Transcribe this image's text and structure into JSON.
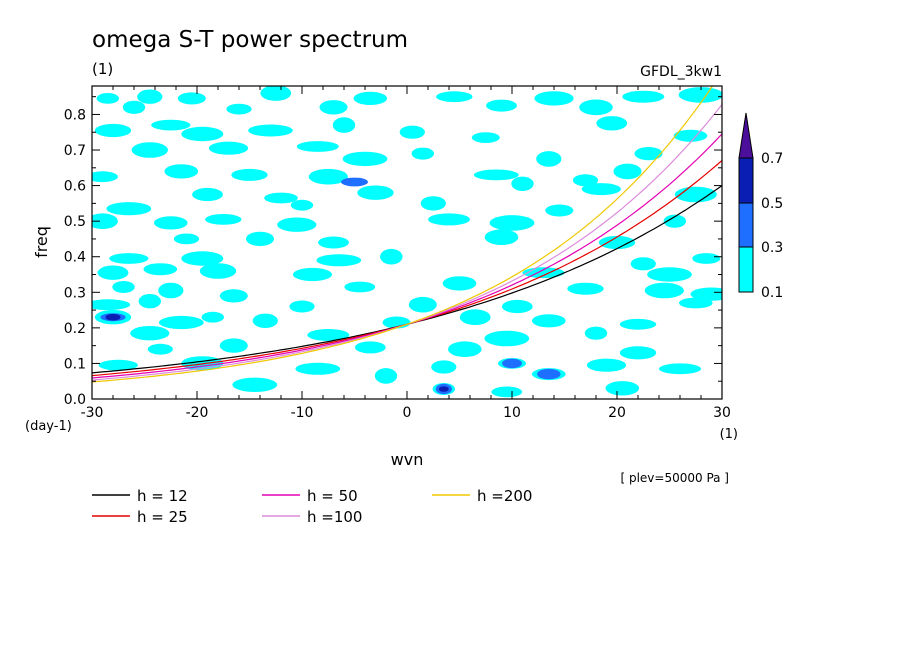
{
  "chart_data": {
    "type": "heatmap",
    "title": "omega S-T power spectrum",
    "units": "(1)",
    "model": "GFDL_3kw1",
    "xlabel": "wvn",
    "ylabel": "freq",
    "x_units": "(1)",
    "y_units": "(day-1)",
    "level_note": "[ plev=50000 Pa ]",
    "xlim": [
      -30,
      30
    ],
    "ylim": [
      0,
      0.88
    ],
    "x_ticks": [
      "-30",
      "-20",
      "-10",
      "0",
      "10",
      "20",
      "30"
    ],
    "y_ticks": [
      "0.0",
      "0.1",
      "0.2",
      "0.3",
      "0.4",
      "0.5",
      "0.6",
      "0.7",
      "0.8"
    ],
    "colorbar": {
      "levels": [
        "0.1",
        "0.3",
        "0.5",
        "0.7"
      ],
      "colors": [
        "#00ffff",
        "#1e6eff",
        "#0a1eb4",
        "#4b0f9b"
      ]
    },
    "dispersion_curves": [
      {
        "name": "h = 12",
        "h": 12,
        "color": "#000000"
      },
      {
        "name": "h = 25",
        "h": 25,
        "color": "#e60000"
      },
      {
        "name": "h = 50",
        "h": 50,
        "color": "#e600b4"
      },
      {
        "name": "h =100",
        "h": 100,
        "color": "#dc8cdc"
      },
      {
        "name": "h =200",
        "h": 200,
        "color": "#f0c800"
      }
    ],
    "power_patches": [
      {
        "x": -28.5,
        "y": 0.845,
        "level": 0
      },
      {
        "x": -24.5,
        "y": 0.85,
        "level": 0
      },
      {
        "x": -20.5,
        "y": 0.845,
        "level": 0
      },
      {
        "x": -12.5,
        "y": 0.86,
        "level": 0
      },
      {
        "x": -3.5,
        "y": 0.845,
        "level": 0
      },
      {
        "x": 4.5,
        "y": 0.85,
        "level": 0
      },
      {
        "x": 14,
        "y": 0.845,
        "level": 0
      },
      {
        "x": 22.5,
        "y": 0.85,
        "level": 0
      },
      {
        "x": 28,
        "y": 0.855,
        "level": 0
      },
      {
        "x": -26,
        "y": 0.82,
        "level": 0
      },
      {
        "x": -16,
        "y": 0.815,
        "level": 0
      },
      {
        "x": -7,
        "y": 0.82,
        "level": 0
      },
      {
        "x": 9,
        "y": 0.825,
        "level": 0
      },
      {
        "x": 18,
        "y": 0.82,
        "level": 0
      },
      {
        "x": -28,
        "y": 0.755,
        "level": 0
      },
      {
        "x": -22.5,
        "y": 0.77,
        "level": 0
      },
      {
        "x": -19.5,
        "y": 0.745,
        "level": 0
      },
      {
        "x": -13,
        "y": 0.755,
        "level": 0
      },
      {
        "x": -6,
        "y": 0.77,
        "level": 0
      },
      {
        "x": 0.5,
        "y": 0.75,
        "level": 0
      },
      {
        "x": 7.5,
        "y": 0.735,
        "level": 0
      },
      {
        "x": 19.5,
        "y": 0.775,
        "level": 0
      },
      {
        "x": 27,
        "y": 0.74,
        "level": 0
      },
      {
        "x": -24.5,
        "y": 0.7,
        "level": 0
      },
      {
        "x": -17,
        "y": 0.705,
        "level": 0
      },
      {
        "x": -8.5,
        "y": 0.71,
        "level": 0
      },
      {
        "x": -4,
        "y": 0.675,
        "level": 0
      },
      {
        "x": 1.5,
        "y": 0.69,
        "level": 0
      },
      {
        "x": 13.5,
        "y": 0.675,
        "level": 0
      },
      {
        "x": 23,
        "y": 0.69,
        "level": 0
      },
      {
        "x": -29,
        "y": 0.625,
        "level": 0
      },
      {
        "x": -21.5,
        "y": 0.64,
        "level": 0
      },
      {
        "x": -15,
        "y": 0.63,
        "level": 0
      },
      {
        "x": -7.5,
        "y": 0.625,
        "level": 0
      },
      {
        "x": -5,
        "y": 0.61,
        "level": 1
      },
      {
        "x": 8.5,
        "y": 0.63,
        "level": 0
      },
      {
        "x": 11,
        "y": 0.605,
        "level": 0
      },
      {
        "x": 17,
        "y": 0.615,
        "level": 0
      },
      {
        "x": 21,
        "y": 0.64,
        "level": 0
      },
      {
        "x": -19,
        "y": 0.575,
        "level": 0
      },
      {
        "x": -12,
        "y": 0.565,
        "level": 0
      },
      {
        "x": -3,
        "y": 0.58,
        "level": 0
      },
      {
        "x": 18.5,
        "y": 0.59,
        "level": 0
      },
      {
        "x": 27.5,
        "y": 0.575,
        "level": 0
      },
      {
        "x": -26.5,
        "y": 0.535,
        "level": 0
      },
      {
        "x": -10,
        "y": 0.545,
        "level": 0
      },
      {
        "x": 2.5,
        "y": 0.55,
        "level": 0
      },
      {
        "x": 14.5,
        "y": 0.53,
        "level": 0
      },
      {
        "x": -29,
        "y": 0.5,
        "level": 0
      },
      {
        "x": -22.5,
        "y": 0.495,
        "level": 0
      },
      {
        "x": -17.5,
        "y": 0.505,
        "level": 0
      },
      {
        "x": -10.5,
        "y": 0.49,
        "level": 0
      },
      {
        "x": 4,
        "y": 0.505,
        "level": 0
      },
      {
        "x": 10,
        "y": 0.495,
        "level": 0
      },
      {
        "x": 25.5,
        "y": 0.5,
        "level": 0
      },
      {
        "x": -21,
        "y": 0.45,
        "level": 0
      },
      {
        "x": -14,
        "y": 0.45,
        "level": 0
      },
      {
        "x": -7,
        "y": 0.44,
        "level": 0
      },
      {
        "x": 9,
        "y": 0.455,
        "level": 0
      },
      {
        "x": 20,
        "y": 0.44,
        "level": 0
      },
      {
        "x": -26.5,
        "y": 0.395,
        "level": 0
      },
      {
        "x": -19.5,
        "y": 0.395,
        "level": 0
      },
      {
        "x": -6.5,
        "y": 0.39,
        "level": 0
      },
      {
        "x": -1.5,
        "y": 0.4,
        "level": 0
      },
      {
        "x": 22.5,
        "y": 0.38,
        "level": 0
      },
      {
        "x": 28.5,
        "y": 0.395,
        "level": 0
      },
      {
        "x": -28,
        "y": 0.355,
        "level": 0
      },
      {
        "x": -23.5,
        "y": 0.365,
        "level": 0
      },
      {
        "x": -18,
        "y": 0.36,
        "level": 0
      },
      {
        "x": -9,
        "y": 0.35,
        "level": 0
      },
      {
        "x": 13,
        "y": 0.355,
        "level": 0
      },
      {
        "x": 25,
        "y": 0.35,
        "level": 0
      },
      {
        "x": -27,
        "y": 0.315,
        "level": 0
      },
      {
        "x": -22.5,
        "y": 0.305,
        "level": 0
      },
      {
        "x": -16.5,
        "y": 0.29,
        "level": 0
      },
      {
        "x": -4.5,
        "y": 0.315,
        "level": 0
      },
      {
        "x": 5,
        "y": 0.325,
        "level": 0
      },
      {
        "x": 17,
        "y": 0.31,
        "level": 0
      },
      {
        "x": 24.5,
        "y": 0.305,
        "level": 0
      },
      {
        "x": 29,
        "y": 0.295,
        "level": 0
      },
      {
        "x": -28.5,
        "y": 0.265,
        "level": 0
      },
      {
        "x": -24.5,
        "y": 0.275,
        "level": 0
      },
      {
        "x": -10,
        "y": 0.26,
        "level": 0
      },
      {
        "x": 1.5,
        "y": 0.265,
        "level": 0
      },
      {
        "x": 10.5,
        "y": 0.26,
        "level": 0
      },
      {
        "x": 27.5,
        "y": 0.27,
        "level": 0
      },
      {
        "x": -28,
        "y": 0.23,
        "level": 0
      },
      {
        "x": -28,
        "y": 0.23,
        "level": 1
      },
      {
        "x": -28,
        "y": 0.23,
        "level": 2
      },
      {
        "x": -21.5,
        "y": 0.215,
        "level": 0
      },
      {
        "x": -18.5,
        "y": 0.23,
        "level": 0
      },
      {
        "x": -13.5,
        "y": 0.22,
        "level": 0
      },
      {
        "x": -1,
        "y": 0.215,
        "level": 0
      },
      {
        "x": 6.5,
        "y": 0.23,
        "level": 0
      },
      {
        "x": 13.5,
        "y": 0.22,
        "level": 0
      },
      {
        "x": 22,
        "y": 0.21,
        "level": 0
      },
      {
        "x": -24.5,
        "y": 0.185,
        "level": 0
      },
      {
        "x": -7.5,
        "y": 0.18,
        "level": 0
      },
      {
        "x": 9.5,
        "y": 0.17,
        "level": 0
      },
      {
        "x": 18,
        "y": 0.185,
        "level": 0
      },
      {
        "x": -23.5,
        "y": 0.14,
        "level": 0
      },
      {
        "x": -16.5,
        "y": 0.15,
        "level": 0
      },
      {
        "x": -3.5,
        "y": 0.145,
        "level": 0
      },
      {
        "x": 5.5,
        "y": 0.14,
        "level": 0
      },
      {
        "x": 22,
        "y": 0.13,
        "level": 0
      },
      {
        "x": -27.5,
        "y": 0.095,
        "level": 0
      },
      {
        "x": -19.5,
        "y": 0.1,
        "level": 0
      },
      {
        "x": -8.5,
        "y": 0.085,
        "level": 0
      },
      {
        "x": -2,
        "y": 0.065,
        "level": 0
      },
      {
        "x": 3.5,
        "y": 0.09,
        "level": 0
      },
      {
        "x": 10,
        "y": 0.1,
        "level": 0
      },
      {
        "x": 10,
        "y": 0.1,
        "level": 1
      },
      {
        "x": 13.5,
        "y": 0.07,
        "level": 0
      },
      {
        "x": 13.5,
        "y": 0.07,
        "level": 1
      },
      {
        "x": 19,
        "y": 0.095,
        "level": 0
      },
      {
        "x": 26,
        "y": 0.085,
        "level": 0
      },
      {
        "x": -14.5,
        "y": 0.04,
        "level": 0
      },
      {
        "x": 3.5,
        "y": 0.028,
        "level": 0
      },
      {
        "x": 3.5,
        "y": 0.028,
        "level": 1
      },
      {
        "x": 3.5,
        "y": 0.028,
        "level": 2
      },
      {
        "x": 9.5,
        "y": 0.02,
        "level": 0
      },
      {
        "x": 20.5,
        "y": 0.03,
        "level": 0
      }
    ]
  }
}
